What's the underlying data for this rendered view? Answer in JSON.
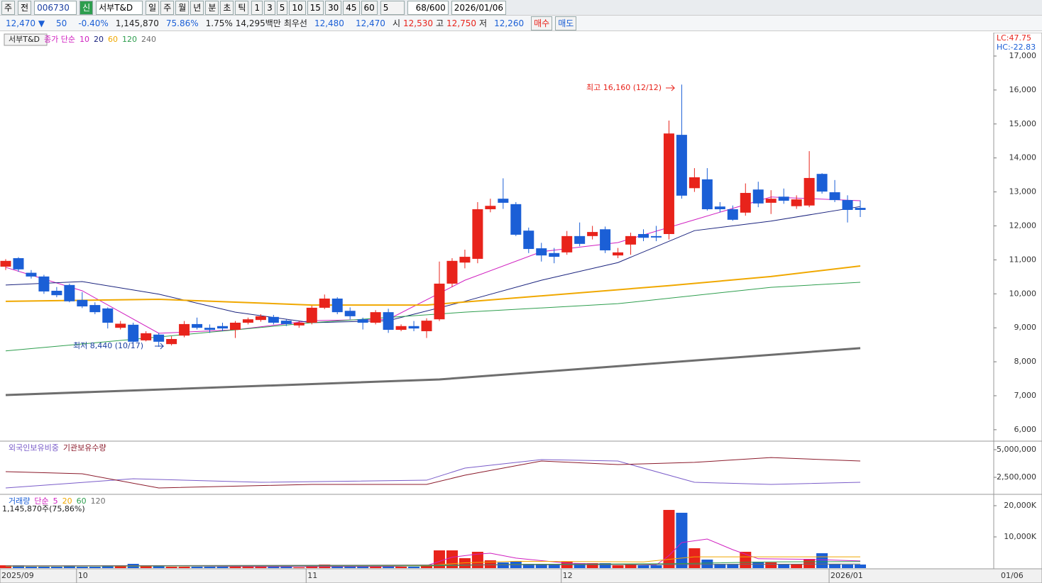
{
  "toolbar": {
    "market": "주",
    "prev": "전",
    "code": "006730",
    "badge": "신",
    "name": "서부T&D",
    "periods": [
      "일",
      "주",
      "월",
      "년",
      "분",
      "초",
      "틱"
    ],
    "intervals": [
      "1",
      "3",
      "5",
      "10",
      "15",
      "30",
      "45",
      "60"
    ],
    "count": "5",
    "range": "68/600",
    "date": "2026/01/06"
  },
  "quote_bar": {
    "price": "12,470",
    "change": "50",
    "change_rate": "-0.40%",
    "volume": "1,145,870",
    "volume_ratio": "75.86%",
    "turnover": "1.75%",
    "amount": "14,295백만",
    "best_label": "최우선",
    "best_ask": "12,480",
    "best_bid": "12,470",
    "open_label": "시",
    "open": "12,530",
    "high_label": "고",
    "high": "12,750",
    "low_label": "저",
    "low": "12,260",
    "buy": "매수",
    "sell": "매도"
  },
  "chart_data": [
    {
      "type": "candlestick",
      "name": "서부T&D",
      "legend_title": "종가 단순",
      "up_color": "#e8231b",
      "down_color": "#1b5fd6",
      "open": [
        10800,
        11050,
        10620,
        10510,
        10090,
        10260,
        9820,
        9670,
        9570,
        9000,
        9090,
        8630,
        8800,
        8520,
        8770,
        9110,
        9000,
        9050,
        8940,
        9150,
        9230,
        9320,
        9210,
        9070,
        9150,
        9590,
        9860,
        9500,
        9250,
        9150,
        9460,
        8940,
        9050,
        8900,
        9250,
        10300,
        10920,
        11030,
        12490,
        12800,
        12640,
        11860,
        11340,
        11200,
        11220,
        11700,
        11700,
        11900,
        11130,
        11450,
        11760,
        11700,
        11760,
        14680,
        13110,
        13370,
        12570,
        12490,
        12390,
        13070,
        12680,
        12860,
        12580,
        12600,
        13530,
        12990,
        12760,
        12530
      ],
      "high": [
        11020,
        11080,
        10700,
        10560,
        10200,
        10300,
        10050,
        9750,
        9600,
        9200,
        9150,
        8900,
        8850,
        8750,
        9200,
        9300,
        9100,
        9150,
        9200,
        9300,
        9400,
        9380,
        9250,
        9200,
        9650,
        9980,
        9900,
        9600,
        9300,
        9520,
        9560,
        9100,
        9200,
        9280,
        10950,
        11050,
        11300,
        12700,
        12800,
        13400,
        12700,
        11950,
        11500,
        11350,
        11850,
        12100,
        12000,
        11980,
        11350,
        11800,
        11900,
        12000,
        15100,
        16160,
        13700,
        13700,
        12700,
        12600,
        13250,
        13300,
        13050,
        13100,
        12900,
        14200,
        13550,
        13350,
        12900,
        12750
      ],
      "low": [
        10700,
        10650,
        10450,
        10000,
        9900,
        9750,
        9580,
        9400,
        8980,
        8950,
        8560,
        8600,
        8440,
        8480,
        8720,
        8950,
        8850,
        8900,
        8700,
        9100,
        9180,
        9100,
        9050,
        9000,
        9100,
        9550,
        9400,
        9250,
        8950,
        9100,
        8850,
        8900,
        8900,
        8700,
        9200,
        10200,
        10750,
        10900,
        12400,
        12500,
        11700,
        11200,
        10950,
        10900,
        11150,
        11400,
        11600,
        11200,
        11050,
        11150,
        11550,
        11550,
        11600,
        12800,
        13000,
        12450,
        12400,
        12150,
        12300,
        12550,
        12350,
        12650,
        12500,
        12550,
        12950,
        12700,
        12100,
        12260
      ],
      "close": [
        10970,
        10720,
        10510,
        10070,
        9960,
        9780,
        9630,
        9460,
        9150,
        9120,
        8590,
        8840,
        8590,
        8670,
        9110,
        9000,
        8940,
        8980,
        9150,
        9250,
        9340,
        9150,
        9110,
        9150,
        9590,
        9860,
        9460,
        9340,
        9150,
        9460,
        8940,
        9050,
        8980,
        9210,
        10300,
        10970,
        11090,
        12490,
        12590,
        12680,
        11740,
        11320,
        11130,
        11090,
        11700,
        11470,
        11820,
        11280,
        11220,
        11700,
        11650,
        11680,
        14720,
        12890,
        13430,
        12490,
        12490,
        12180,
        12970,
        12660,
        12800,
        12740,
        12780,
        13410,
        13010,
        12760,
        12470,
        12470
      ],
      "ma_series": [
        {
          "name": "10",
          "color": "#d020c0",
          "width": 1,
          "x": [
            0,
            6,
            12,
            18,
            24,
            30,
            36,
            42,
            48,
            54,
            60,
            67
          ],
          "values": [
            10780,
            10090,
            8840,
            8940,
            9210,
            9250,
            10400,
            11240,
            11510,
            12180,
            12850,
            12740
          ]
        },
        {
          "name": "20",
          "color": "#1a237e",
          "width": 1,
          "x": [
            0,
            6,
            12,
            18,
            24,
            30,
            36,
            42,
            48,
            54,
            60,
            67
          ],
          "values": [
            10260,
            10360,
            9990,
            9460,
            9150,
            9210,
            9780,
            10400,
            10920,
            11860,
            12140,
            12570
          ]
        },
        {
          "name": "60",
          "color": "#f0a800",
          "width": 2,
          "x": [
            0,
            12,
            24,
            33,
            40,
            52,
            60,
            67
          ],
          "values": [
            9780,
            9840,
            9670,
            9670,
            9880,
            10240,
            10510,
            10820
          ]
        },
        {
          "name": "120",
          "color": "#2e9e4e",
          "width": 1,
          "x": [
            0,
            12,
            24,
            36,
            48,
            60,
            67
          ],
          "values": [
            8320,
            8730,
            9150,
            9460,
            9710,
            10190,
            10340
          ]
        },
        {
          "name": "240",
          "color": "#6e6e6e",
          "width": 3,
          "x": [
            0,
            34,
            67
          ],
          "values": [
            7020,
            7480,
            8400
          ]
        }
      ],
      "ylim": [
        5705,
        17668
      ],
      "yticks": [
        {
          "value": 6000,
          "label": "6,000"
        },
        {
          "value": 7000,
          "label": "7,000"
        },
        {
          "value": 8000,
          "label": "8,000"
        },
        {
          "value": 9000,
          "label": "9,000"
        },
        {
          "value": 10000,
          "label": "10,000"
        },
        {
          "value": 11000,
          "label": "11,000"
        },
        {
          "value": 12000,
          "label": "12,000"
        },
        {
          "value": 13000,
          "label": "13,000"
        },
        {
          "value": 14000,
          "label": "14,000"
        },
        {
          "value": 15000,
          "label": "15,000"
        },
        {
          "value": 16000,
          "label": "16,000"
        },
        {
          "value": 17000,
          "label": "17,000"
        }
      ],
      "annotations": [
        "최고 16,160 (12/12)",
        "최저 8,440 (10/17)"
      ],
      "indicators": [
        "LC:47.75",
        "HC:-22.83"
      ]
    },
    {
      "type": "line",
      "series": [
        {
          "name": "외국인보유비중",
          "color": "#7a5cc9",
          "x": [
            0,
            10,
            20,
            33,
            36,
            42,
            48,
            54,
            60,
            67
          ],
          "values": [
            1540000,
            2370000,
            2050000,
            2240000,
            3330000,
            4100000,
            3970000,
            2050000,
            1860000,
            2050000
          ]
        },
        {
          "name": "기관보유수량",
          "color": "#8b1a2b",
          "x": [
            0,
            6,
            12,
            24,
            33,
            36,
            42,
            48,
            54,
            60,
            67
          ],
          "values": [
            3010000,
            2820000,
            1540000,
            1860000,
            1860000,
            2690000,
            3970000,
            3650000,
            3850000,
            4290000,
            3970000
          ]
        }
      ],
      "ylim": [
        1090000,
        5640000
      ],
      "yticks": [
        {
          "value": 2500000,
          "label": "2,500,000"
        },
        {
          "value": 5000000,
          "label": "5,000,000"
        }
      ]
    },
    {
      "type": "bar",
      "title": "거래량",
      "legend_title": "단순",
      "summary": "1,145,870주(75,86%)",
      "categories": [
        "2025/09",
        null,
        null,
        null,
        null,
        null,
        "10",
        null,
        null,
        null,
        null,
        null,
        null,
        null,
        null,
        null,
        null,
        null,
        null,
        null,
        null,
        null,
        null,
        null,
        "11",
        null,
        null,
        null,
        null,
        null,
        null,
        null,
        null,
        null,
        null,
        null,
        null,
        null,
        null,
        null,
        null,
        null,
        null,
        null,
        "12",
        null,
        null,
        null,
        null,
        null,
        null,
        null,
        null,
        null,
        null,
        null,
        null,
        null,
        null,
        null,
        null,
        null,
        null,
        null,
        null,
        "2026/01",
        null,
        null
      ],
      "values": [
        900,
        900,
        450,
        450,
        450,
        650,
        450,
        450,
        650,
        650,
        1360,
        650,
        650,
        450,
        450,
        450,
        450,
        450,
        450,
        450,
        450,
        450,
        450,
        250,
        900,
        1140,
        650,
        450,
        450,
        450,
        650,
        450,
        450,
        900,
        5680,
        5680,
        3180,
        5230,
        2500,
        1820,
        2050,
        1360,
        1360,
        1360,
        2050,
        1590,
        1590,
        1590,
        900,
        1140,
        900,
        900,
        18640,
        17730,
        6360,
        2730,
        1360,
        1360,
        5230,
        2050,
        1820,
        1360,
        1360,
        2950,
        4770,
        1360,
        1140,
        1146
      ],
      "ma_series": [
        {
          "name": "5",
          "color": "#d020c0",
          "width": 1,
          "x": [
            0,
            10,
            20,
            30,
            33,
            35,
            37,
            38,
            40,
            44,
            48,
            51,
            52,
            53,
            55,
            57,
            59,
            63,
            67
          ],
          "values": [
            700,
            800,
            500,
            550,
            800,
            3500,
            4500,
            4770,
            3200,
            1600,
            1200,
            1000,
            4000,
            8180,
            9320,
            5910,
            3000,
            2800,
            2300
          ]
        },
        {
          "name": "20",
          "color": "#f0a800",
          "width": 1,
          "x": [
            0,
            33,
            36,
            40,
            50,
            52,
            54,
            60,
            67
          ],
          "values": [
            600,
            800,
            1700,
            2200,
            2000,
            2800,
            3600,
            3600,
            3600
          ]
        },
        {
          "name": "60",
          "color": "#2e9e4e",
          "width": 1,
          "x": [
            0,
            33,
            40,
            52,
            60,
            67
          ],
          "values": [
            700,
            700,
            1200,
            1400,
            2000,
            2100
          ]
        },
        {
          "name": "120",
          "color": "#6e6e6e",
          "width": 1,
          "x": [
            0,
            67
          ],
          "values": [
            700,
            1300
          ]
        }
      ],
      "ylim": [
        0,
        22950
      ],
      "yticks": [
        {
          "value": 10000,
          "label": "10,000K"
        },
        {
          "value": 20000,
          "label": "20,000K"
        }
      ],
      "last_date": "01/06"
    }
  ]
}
